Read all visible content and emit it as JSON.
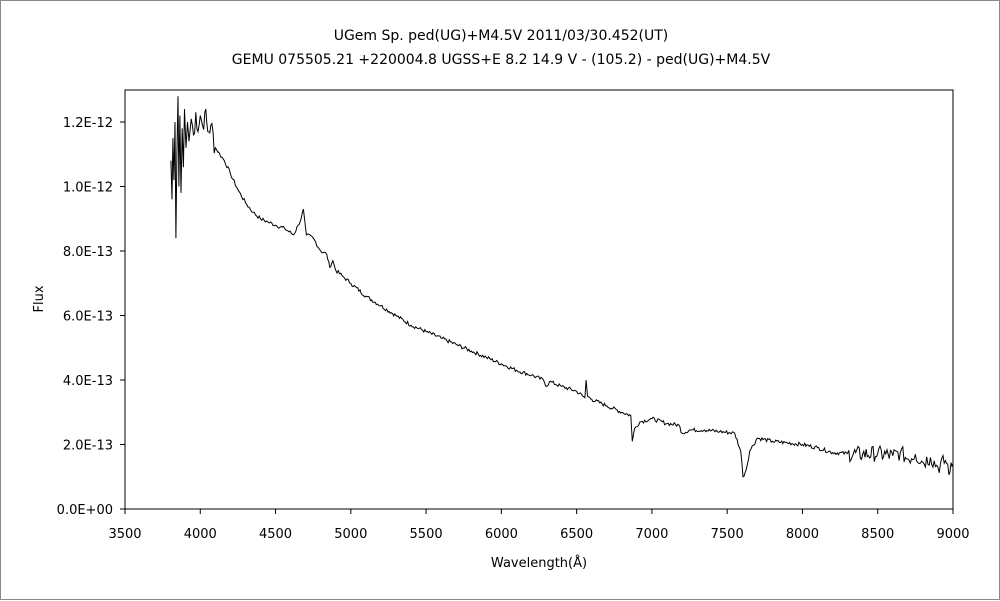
{
  "chart_data": {
    "type": "line",
    "title": "UGem    Sp. ped(UG)+M4.5V    2011/03/30.452(UT)",
    "subtitle": "GEMU 075505.21 +220004.8 UGSS+E 8.2 14.9 V - (105.2) - ped(UG)+M4.5V",
    "xlabel": "Wavelength(Å)",
    "ylabel": "Flux",
    "xlim": [
      3500,
      9000
    ],
    "ylim": [
      0,
      1.3e-12
    ],
    "xticks": [
      3500,
      4000,
      4500,
      5000,
      5500,
      6000,
      6500,
      7000,
      7500,
      8000,
      8500,
      9000
    ],
    "yticks": [
      0,
      2e-13,
      4e-13,
      6e-13,
      8e-13,
      1e-12,
      1.2e-12
    ],
    "ytick_labels": [
      "0.0E+00",
      "2.0E-13",
      "4.0E-13",
      "6.0E-13",
      "8.0E-13",
      "1.0E-12",
      "1.2E-12"
    ],
    "grid": false,
    "legend": "none",
    "series": [
      {
        "name": "Flux",
        "unit_scale": 1e-13,
        "points": [
          [
            3805,
            10.8
          ],
          [
            3812,
            9.6
          ],
          [
            3818,
            11.5
          ],
          [
            3825,
            10.2
          ],
          [
            3832,
            12.0
          ],
          [
            3838,
            8.4
          ],
          [
            3845,
            11.0
          ],
          [
            3852,
            12.8
          ],
          [
            3858,
            10.0
          ],
          [
            3865,
            12.2
          ],
          [
            3872,
            9.8
          ],
          [
            3880,
            11.8
          ],
          [
            3888,
            10.6
          ],
          [
            3895,
            12.4
          ],
          [
            3905,
            11.2
          ],
          [
            3915,
            12.0
          ],
          [
            3925,
            11.4
          ],
          [
            3940,
            12.1
          ],
          [
            3955,
            11.6
          ],
          [
            3970,
            12.3
          ],
          [
            3985,
            11.7
          ],
          [
            4000,
            12.2
          ],
          [
            4015,
            11.9
          ],
          [
            4030,
            12.3
          ],
          [
            4050,
            11.7
          ],
          [
            4070,
            11.9
          ],
          [
            4100,
            11.2
          ],
          [
            4130,
            11.0
          ],
          [
            4160,
            10.8
          ],
          [
            4200,
            10.4
          ],
          [
            4250,
            9.9
          ],
          [
            4300,
            9.5
          ],
          [
            4350,
            9.2
          ],
          [
            4400,
            9.0
          ],
          [
            4450,
            8.9
          ],
          [
            4500,
            8.8
          ],
          [
            4560,
            8.7
          ],
          [
            4620,
            8.5
          ],
          [
            4650,
            8.8
          ],
          [
            4670,
            9.0
          ],
          [
            4685,
            9.3
          ],
          [
            4695,
            8.9
          ],
          [
            4705,
            8.5
          ],
          [
            4750,
            8.4
          ],
          [
            4800,
            8.0
          ],
          [
            4840,
            7.9
          ],
          [
            4860,
            7.5
          ],
          [
            4880,
            7.7
          ],
          [
            4900,
            7.4
          ],
          [
            4950,
            7.2
          ],
          [
            5000,
            7.0
          ],
          [
            5100,
            6.6
          ],
          [
            5200,
            6.3
          ],
          [
            5300,
            6.0
          ],
          [
            5400,
            5.7
          ],
          [
            5500,
            5.5
          ],
          [
            5600,
            5.3
          ],
          [
            5700,
            5.1
          ],
          [
            5800,
            4.9
          ],
          [
            5900,
            4.7
          ],
          [
            6000,
            4.5
          ],
          [
            6100,
            4.3
          ],
          [
            6200,
            4.15
          ],
          [
            6280,
            4.0
          ],
          [
            6300,
            3.8
          ],
          [
            6320,
            3.95
          ],
          [
            6400,
            3.8
          ],
          [
            6500,
            3.65
          ],
          [
            6540,
            3.5
          ],
          [
            6555,
            3.45
          ],
          [
            6563,
            4.0
          ],
          [
            6572,
            3.5
          ],
          [
            6600,
            3.4
          ],
          [
            6700,
            3.2
          ],
          [
            6800,
            3.0
          ],
          [
            6860,
            2.9
          ],
          [
            6870,
            2.1
          ],
          [
            6885,
            2.5
          ],
          [
            6920,
            2.7
          ],
          [
            7000,
            2.8
          ],
          [
            7100,
            2.65
          ],
          [
            7180,
            2.6
          ],
          [
            7200,
            2.35
          ],
          [
            7250,
            2.45
          ],
          [
            7350,
            2.45
          ],
          [
            7450,
            2.4
          ],
          [
            7550,
            2.35
          ],
          [
            7590,
            1.8
          ],
          [
            7605,
            1.0
          ],
          [
            7625,
            1.2
          ],
          [
            7650,
            1.8
          ],
          [
            7700,
            2.2
          ],
          [
            7800,
            2.1
          ],
          [
            7900,
            2.05
          ],
          [
            8000,
            2.0
          ],
          [
            8100,
            1.9
          ],
          [
            8200,
            1.75
          ],
          [
            8300,
            1.72
          ],
          [
            8400,
            1.7
          ],
          [
            8500,
            1.72
          ],
          [
            8600,
            1.65
          ],
          [
            8650,
            1.75
          ],
          [
            8700,
            1.55
          ],
          [
            8750,
            1.7
          ],
          [
            8800,
            1.45
          ],
          [
            8850,
            1.6
          ],
          [
            8900,
            1.3
          ],
          [
            8950,
            1.5
          ],
          [
            8980,
            1.15
          ],
          [
            9000,
            1.4
          ]
        ]
      }
    ]
  }
}
